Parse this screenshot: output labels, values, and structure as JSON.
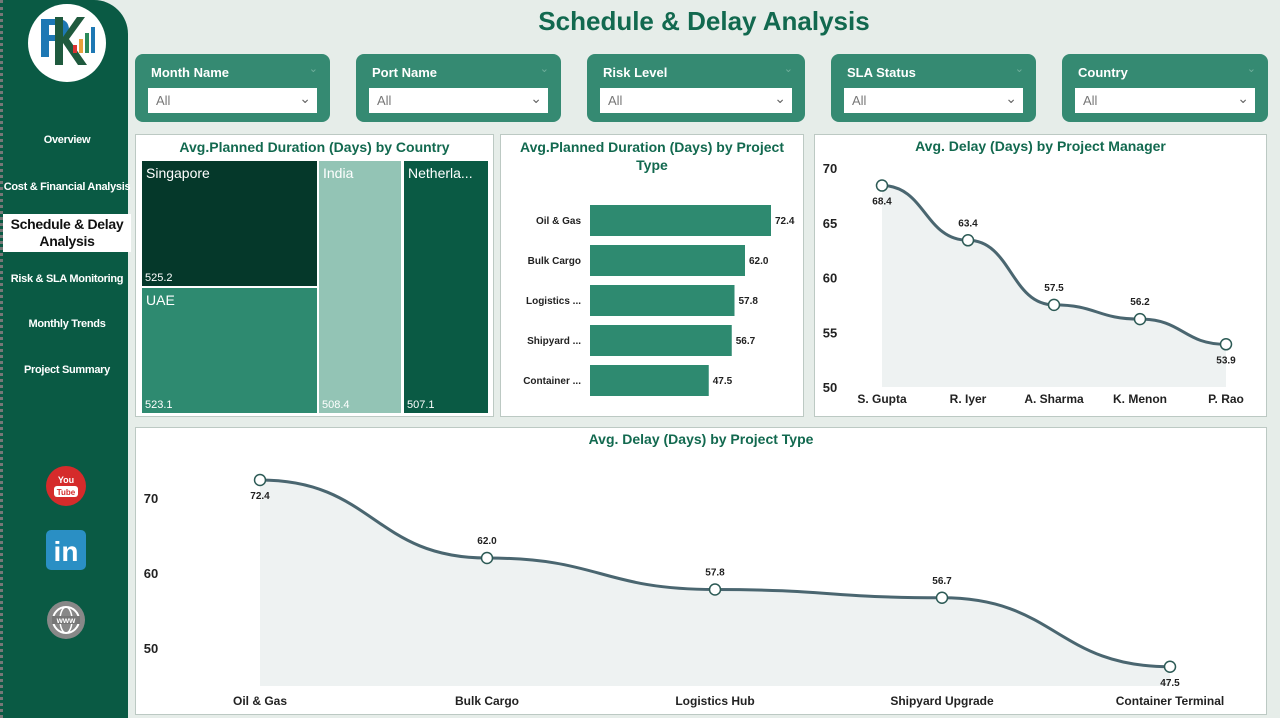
{
  "title": "Schedule & Delay Analysis",
  "sidebar": {
    "items": [
      {
        "label": "Overview"
      },
      {
        "label": "Cost & Financial Analysis"
      },
      {
        "label": "Schedule & Delay Analysis",
        "active": true
      },
      {
        "label": "Risk & SLA Monitoring"
      },
      {
        "label": "Monthly Trends"
      },
      {
        "label": "Project Summary"
      }
    ],
    "social": [
      {
        "icon": "youtube-icon",
        "label": "YouTube"
      },
      {
        "icon": "linkedin-icon",
        "label": "in"
      },
      {
        "icon": "globe-icon",
        "label": "www"
      }
    ]
  },
  "slicers": [
    {
      "label": "Month Name",
      "value": "All"
    },
    {
      "label": "Port Name",
      "value": "All"
    },
    {
      "label": "Risk Level",
      "value": "All"
    },
    {
      "label": "SLA Status",
      "value": "All"
    },
    {
      "label": "Country",
      "value": "All"
    }
  ],
  "colors": {
    "primary": "#0a5a44",
    "accent": "#358a72",
    "title": "#12694f",
    "line": "#4a6670"
  },
  "chart_data": [
    {
      "type": "treemap",
      "title": "Avg.Planned Duration (Days) by Country",
      "items": [
        {
          "name": "Singapore",
          "value": 525.2
        },
        {
          "name": "UAE",
          "value": 523.1
        },
        {
          "name": "India",
          "value": 508.4
        },
        {
          "name": "Netherla...",
          "value": 507.1
        }
      ]
    },
    {
      "type": "bar",
      "orientation": "horizontal",
      "title": "Avg.Planned Duration (Days) by Project Type",
      "categories": [
        "Oil & Gas",
        "Bulk Cargo",
        "Logistics ...",
        "Shipyard ...",
        "Container ..."
      ],
      "values": [
        72.4,
        62.0,
        57.8,
        56.7,
        47.5
      ]
    },
    {
      "type": "area",
      "title": "Avg. Delay (Days) by Project Manager",
      "categories": [
        "S. Gupta",
        "R. Iyer",
        "A. Sharma",
        "K. Menon",
        "P. Rao"
      ],
      "values": [
        68.4,
        63.4,
        57.5,
        56.2,
        53.9
      ],
      "ylim": [
        50,
        70
      ],
      "yticks": [
        50,
        55,
        60,
        65,
        70
      ]
    },
    {
      "type": "area",
      "title": "Avg. Delay (Days) by Project Type",
      "categories": [
        "Oil & Gas",
        "Bulk Cargo",
        "Logistics Hub",
        "Shipyard Upgrade",
        "Container Terminal"
      ],
      "values": [
        72.4,
        62.0,
        57.8,
        56.7,
        47.5
      ],
      "ylim": [
        47,
        72.4
      ],
      "yticks": [
        50,
        60,
        70
      ]
    }
  ]
}
